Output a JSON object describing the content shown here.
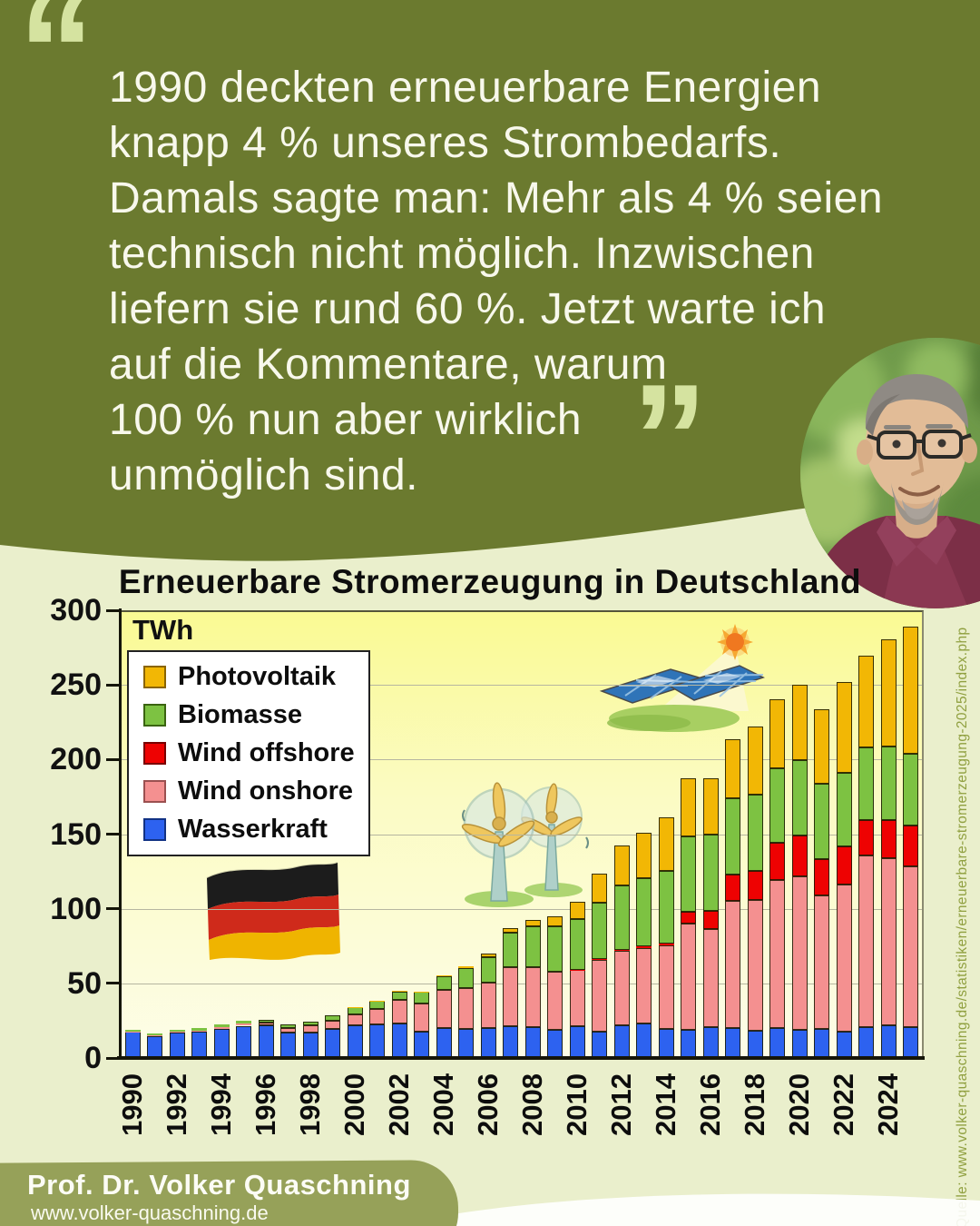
{
  "quote": {
    "open_mark": "“",
    "close_mark": "”",
    "lines": [
      "1990 deckten erneuerbare Energien",
      "knapp 4 % unseres Strombedarfs.",
      "Damals sagte man: Mehr als 4 % seien",
      "technisch nicht möglich. Inzwischen",
      "liefern sie rund 60 %. Jetzt warte ich",
      "auf die Kommentare, warum",
      "100 % nun aber wirklich",
      "unmöglich sind."
    ]
  },
  "portrait": {
    "description": "Porträtfoto Prof. Dr. Volker Quaschning"
  },
  "chart": {
    "title": "Erneuerbare Stromerzeugung in Deutschland",
    "unit_label": "TWh",
    "y_axis": {
      "ticks": [
        300,
        250,
        200,
        150,
        100,
        50,
        0
      ]
    },
    "x_axis": {
      "labels": [
        "1990",
        "1992",
        "1994",
        "1996",
        "1998",
        "2000",
        "2002",
        "2004",
        "2006",
        "2008",
        "2010",
        "2012",
        "2014",
        "2016",
        "2018",
        "2020",
        "2022",
        "2024"
      ]
    },
    "legend": [
      {
        "label": "Photovoltaik",
        "color": "#F2B705",
        "border": "#8a6400"
      },
      {
        "label": "Biomasse",
        "color": "#7DC242",
        "border": "#3a6410"
      },
      {
        "label": "Wind offshore",
        "color": "#EE0202",
        "border": "#7a0000"
      },
      {
        "label": "Wind onshore",
        "color": "#F49090",
        "border": "#9b5050"
      },
      {
        "label": "Wasserkraft",
        "color": "#2D62F0",
        "border": "#123284"
      }
    ]
  },
  "chart_data": {
    "type": "bar",
    "stacked": true,
    "title": "Erneuerbare Stromerzeugung in Deutschland",
    "ylabel": "TWh",
    "ylim": [
      0,
      300
    ],
    "grid": true,
    "legend_position": "upper-left",
    "x_tick_step": 2,
    "categories": [
      1990,
      1991,
      1992,
      1993,
      1994,
      1995,
      1996,
      1997,
      1998,
      1999,
      2000,
      2001,
      2002,
      2003,
      2004,
      2005,
      2006,
      2007,
      2008,
      2009,
      2010,
      2011,
      2012,
      2013,
      2014,
      2015,
      2016,
      2017,
      2018,
      2019,
      2020,
      2021,
      2022,
      2023,
      2024,
      2025
    ],
    "series": [
      {
        "name": "Wasserkraft",
        "color": "#2D62F0",
        "border": "#123284",
        "values": [
          17.4,
          14.9,
          17.2,
          17.7,
          19.7,
          21.6,
          21.8,
          17.2,
          17.2,
          19.6,
          21.7,
          22.5,
          22.9,
          17.7,
          19.9,
          19.6,
          20.0,
          21.2,
          20.4,
          19.0,
          21.0,
          17.7,
          22.1,
          23.0,
          19.6,
          19.0,
          20.5,
          20.2,
          18.0,
          20.1,
          18.7,
          19.4,
          17.5,
          20.4,
          21.7,
          20.5
        ]
      },
      {
        "name": "Wind onshore",
        "color": "#F49090",
        "border": "#9b5050",
        "values": [
          0.1,
          0.1,
          0.3,
          0.6,
          0.9,
          1.5,
          2.0,
          3.0,
          4.5,
          5.5,
          7.6,
          10.5,
          15.8,
          18.7,
          25.5,
          27.2,
          30.7,
          39.7,
          40.6,
          38.6,
          37.8,
          48.3,
          49.9,
          50.8,
          55.9,
          70.9,
          65.9,
          85.3,
          88.0,
          99.2,
          103.1,
          89.5,
          99.0,
          115.3,
          111.9,
          108.0
        ]
      },
      {
        "name": "Wind offshore",
        "color": "#EE0202",
        "border": "#7a0000",
        "values": [
          0,
          0,
          0,
          0,
          0,
          0,
          0,
          0,
          0,
          0,
          0,
          0,
          0,
          0,
          0,
          0,
          0,
          0,
          0,
          0,
          0.2,
          0.6,
          0.7,
          0.9,
          1.4,
          8.3,
          12.1,
          17.7,
          19.5,
          24.7,
          27.3,
          24.4,
          25.1,
          23.5,
          25.7,
          27.0
        ]
      },
      {
        "name": "Biomasse",
        "color": "#7DC242",
        "border": "#3a6410",
        "values": [
          1.4,
          1.5,
          1.5,
          1.6,
          1.7,
          1.8,
          1.9,
          2.1,
          2.8,
          3.4,
          4.7,
          5.2,
          6.0,
          8.0,
          9.4,
          13.5,
          16.8,
          23.1,
          27.2,
          30.5,
          33.9,
          37.5,
          43.2,
          45.5,
          48.3,
          50.3,
          51.0,
          50.9,
          50.8,
          50.1,
          50.5,
          50.2,
          49.5,
          49.2,
          49.3,
          48.5
        ]
      },
      {
        "name": "Photovoltaik",
        "color": "#F2B705",
        "border": "#8a6400",
        "values": [
          0,
          0,
          0,
          0,
          0,
          0,
          0,
          0,
          0,
          0,
          0.1,
          0.1,
          0.2,
          0.3,
          0.6,
          1.3,
          2.2,
          3.1,
          4.4,
          6.6,
          11.7,
          19.6,
          26.4,
          31.0,
          36.1,
          38.7,
          38.1,
          39.4,
          45.8,
          46.4,
          50.7,
          50.0,
          60.8,
          61.1,
          72.2,
          85.0
        ]
      }
    ]
  },
  "footer": {
    "name": "Prof. Dr. Volker Quaschning",
    "website": "www.volker-quaschning.de"
  },
  "source": {
    "text": "Quelle: www.volker-quaschning.de/statistiken/erneuerbare-stromerzeugung-2025/index.php"
  },
  "colors": {
    "olive_dark": "#6B7A2F",
    "olive_light": "#96A159",
    "quote_mark": "#D5E3A0",
    "page_bg": "#EAEFCC"
  }
}
